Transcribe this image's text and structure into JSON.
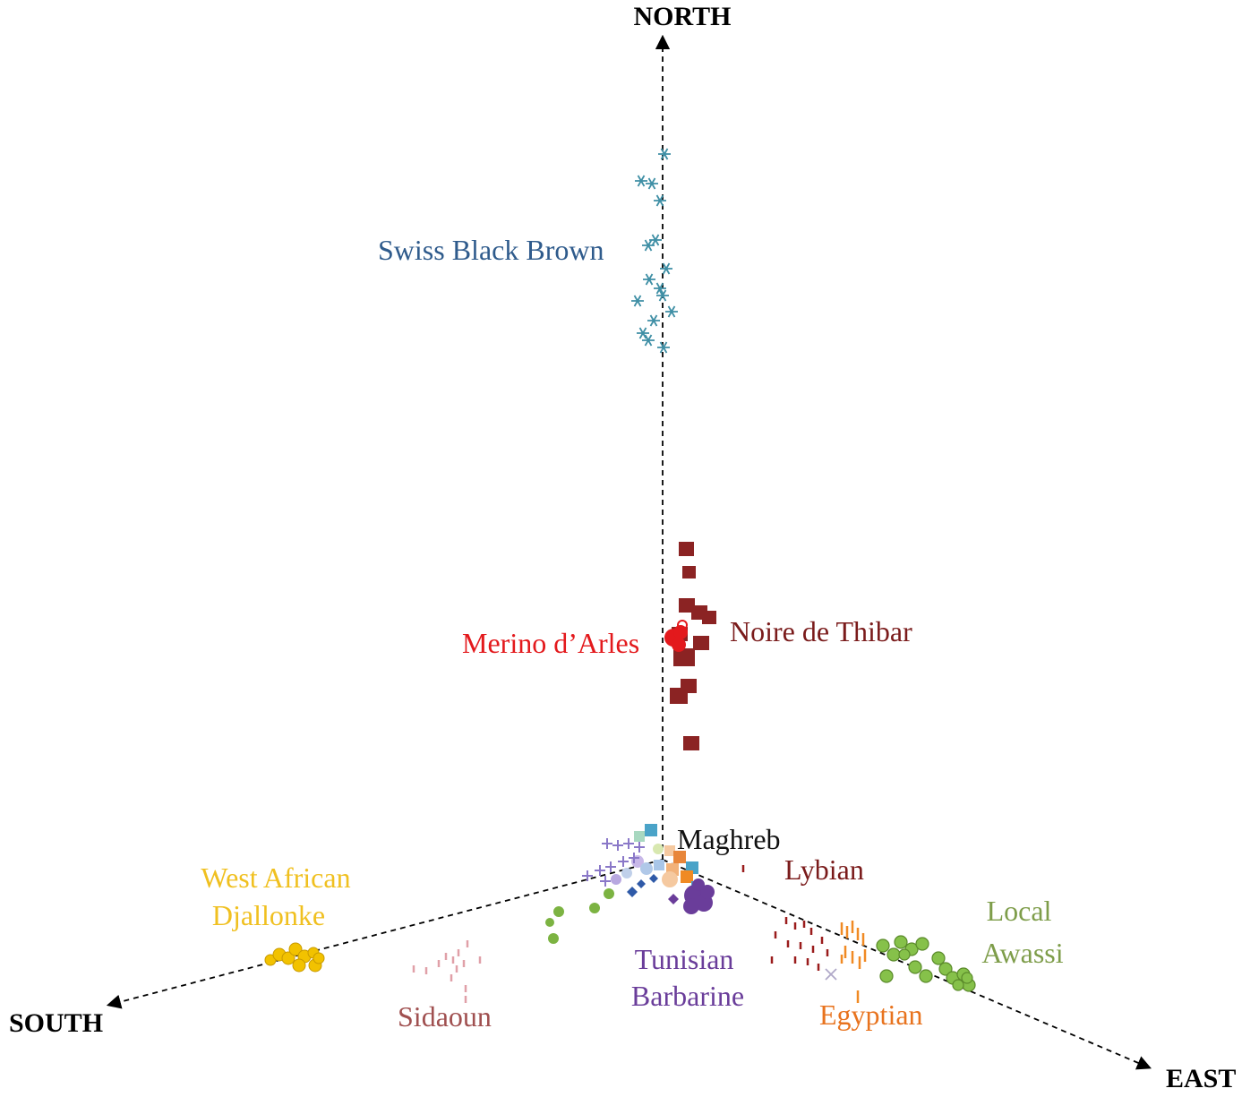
{
  "axes": {
    "north": "NORTH",
    "south": "SOUTH",
    "east": "EAST"
  },
  "groups": [
    {
      "id": "swiss-black-brown",
      "label_lines": [
        "Swiss Black Brown"
      ],
      "color": "#2f5b8c",
      "marker_color": "#3f8fa5",
      "marker": "asterisk"
    },
    {
      "id": "noire-de-thibar",
      "label_lines": [
        "Noire de Thibar"
      ],
      "color": "#7a1b1b",
      "marker_color": "#8b2323",
      "marker": "square"
    },
    {
      "id": "merino-d-arles",
      "label_lines": [
        "Merino  d’Arles"
      ],
      "color": "#e3191c",
      "marker_color": "#e3191c",
      "marker": "circle"
    },
    {
      "id": "maghreb",
      "label_lines": [
        "Maghreb"
      ],
      "color": "#111111",
      "marker_color": "#4aa3c8",
      "marker": "mixed"
    },
    {
      "id": "lybian",
      "label_lines": [
        "Lybian"
      ],
      "color": "#7a1b1b",
      "marker_color": "#9a1c1c",
      "marker": "dash"
    },
    {
      "id": "local-awassi",
      "label_lines": [
        "Local",
        "Awassi"
      ],
      "color": "#7e9d4a",
      "marker_color": "#86c14a",
      "marker": "circle"
    },
    {
      "id": "egyptian",
      "label_lines": [
        "Egyptian"
      ],
      "color": "#e8731e",
      "marker_color": "#f08a24",
      "marker": "bar"
    },
    {
      "id": "tunisian-barbarine",
      "label_lines": [
        "Tunisian",
        "Barbarine"
      ],
      "color": "#6a3d9a",
      "marker_color": "#6a3d9a",
      "marker": "blob"
    },
    {
      "id": "sidaoun",
      "label_lines": [
        "Sidaoun"
      ],
      "color": "#a05050",
      "marker_color": "#e0a0a8",
      "marker": "dash"
    },
    {
      "id": "west-african-djallonke",
      "label_lines": [
        "West African",
        "Djallonke"
      ],
      "color": "#f0c020",
      "marker_color": "#f2c200",
      "marker": "circle"
    }
  ]
}
